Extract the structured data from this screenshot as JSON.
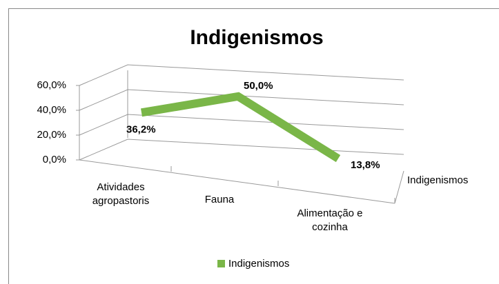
{
  "chart_data": {
    "type": "line",
    "title": "Indigenismos",
    "categories": [
      "Atividades agropastoris",
      "Fauna",
      "Alimentação e cozinha"
    ],
    "series": [
      {
        "name": "Indigenismos",
        "color": "#7ab648",
        "values": [
          36.2,
          50.0,
          13.8
        ],
        "value_labels": [
          "36,2%",
          "50,0%",
          "13,8%"
        ]
      }
    ],
    "ylim": [
      0,
      60
    ],
    "yticks": [
      {
        "value": 0,
        "label": "0,0%"
      },
      {
        "value": 20,
        "label": "20,0%"
      },
      {
        "value": 40,
        "label": "40,0%"
      },
      {
        "value": 60,
        "label": "60,0%"
      }
    ],
    "grid": true,
    "legend": "bottom"
  }
}
